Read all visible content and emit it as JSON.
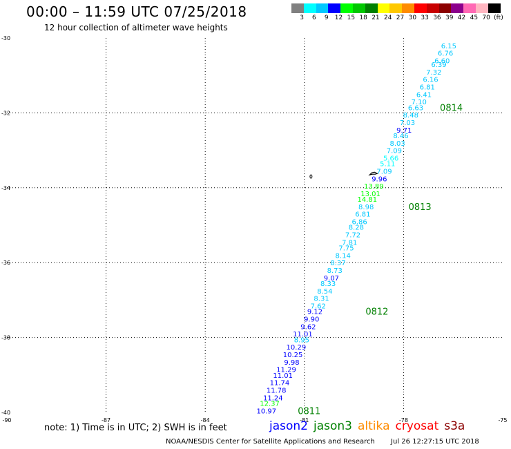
{
  "header": {
    "title": "00:00 – 11:59 UTC 07/25/2018",
    "subtitle": "12 hour collection of altimeter wave heights"
  },
  "colorbar": {
    "colors": [
      "#808080",
      "#00ffff",
      "#00c8ff",
      "#0000ff",
      "#00ff00",
      "#00c800",
      "#008000",
      "#ffff00",
      "#ffc800",
      "#ff8c00",
      "#ff0000",
      "#c80000",
      "#8b0000",
      "#8b008b",
      "#ff69b4",
      "#ffb6c1",
      "#000000"
    ],
    "labels": [
      "3",
      "6",
      "9",
      "12",
      "15",
      "18",
      "21",
      "24",
      "27",
      "30",
      "33",
      "36",
      "39",
      "42",
      "45",
      "70",
      "(ft)"
    ]
  },
  "map": {
    "lon_range": [
      -90,
      -75
    ],
    "lat_range": [
      -40,
      -30
    ],
    "lon_ticks": [
      "-90",
      "-87",
      "-84",
      "-81",
      "-78",
      "-75"
    ],
    "lat_ticks": [
      "-30",
      "-32",
      "-34",
      "-36",
      "-38",
      "-40"
    ],
    "grid": "dotted"
  },
  "swh_points": [
    {
      "lon": -76.4,
      "lat": -30.2,
      "value": "6.15",
      "color": "#00c8ff"
    },
    {
      "lon": -76.5,
      "lat": -30.4,
      "value": "6.76",
      "color": "#00c8ff"
    },
    {
      "lon": -76.6,
      "lat": -30.6,
      "value": "6.60",
      "color": "#00c8ff"
    },
    {
      "lon": -76.7,
      "lat": -30.7,
      "value": "6.39",
      "color": "#00c8ff"
    },
    {
      "lon": -76.85,
      "lat": -30.9,
      "value": "7.32",
      "color": "#00c8ff"
    },
    {
      "lon": -76.95,
      "lat": -31.1,
      "value": "6.16",
      "color": "#00c8ff"
    },
    {
      "lon": -77.05,
      "lat": -31.3,
      "value": "6.81",
      "color": "#00c8ff"
    },
    {
      "lon": -77.15,
      "lat": -31.5,
      "value": "6.41",
      "color": "#00c8ff"
    },
    {
      "lon": -77.3,
      "lat": -31.7,
      "value": "7.10",
      "color": "#00c8ff"
    },
    {
      "lon": -77.4,
      "lat": -31.85,
      "value": "6.63",
      "color": "#00c8ff"
    },
    {
      "lon": -77.55,
      "lat": -32.05,
      "value": "8.48",
      "color": "#00c8ff"
    },
    {
      "lon": -77.65,
      "lat": -32.25,
      "value": "7.03",
      "color": "#00c8ff"
    },
    {
      "lon": -77.75,
      "lat": -32.45,
      "value": "9.71",
      "color": "#0000ff"
    },
    {
      "lon": -77.85,
      "lat": -32.6,
      "value": "8.46",
      "color": "#00c8ff"
    },
    {
      "lon": -77.95,
      "lat": -32.8,
      "value": "8.03",
      "color": "#00c8ff"
    },
    {
      "lon": -78.05,
      "lat": -33.0,
      "value": "7.09",
      "color": "#00c8ff"
    },
    {
      "lon": -78.15,
      "lat": -33.2,
      "value": "5.66",
      "color": "#00ffff"
    },
    {
      "lon": -78.25,
      "lat": -33.35,
      "value": "5.11",
      "color": "#00ffff"
    },
    {
      "lon": -78.35,
      "lat": -33.55,
      "value": "7.09",
      "color": "#00c8ff"
    },
    {
      "lon": -78.5,
      "lat": -33.75,
      "value": "9.96",
      "color": "#0000ff"
    },
    {
      "lon": -78.6,
      "lat": -33.95,
      "value": "13.89",
      "color": "#00ff00"
    },
    {
      "lon": -78.7,
      "lat": -34.15,
      "value": "13.01",
      "color": "#00ff00"
    },
    {
      "lon": -78.8,
      "lat": -34.3,
      "value": "14.81",
      "color": "#00ff00"
    },
    {
      "lon": -78.9,
      "lat": -34.5,
      "value": "8.98",
      "color": "#00c8ff"
    },
    {
      "lon": -79.0,
      "lat": -34.7,
      "value": "6.81",
      "color": "#00c8ff"
    },
    {
      "lon": -79.1,
      "lat": -34.9,
      "value": "6.86",
      "color": "#00c8ff"
    },
    {
      "lon": -79.2,
      "lat": -35.05,
      "value": "8.28",
      "color": "#00c8ff"
    },
    {
      "lon": -79.3,
      "lat": -35.25,
      "value": "7.72",
      "color": "#00c8ff"
    },
    {
      "lon": -79.4,
      "lat": -35.45,
      "value": "7.81",
      "color": "#00c8ff"
    },
    {
      "lon": -79.5,
      "lat": -35.6,
      "value": "7.75",
      "color": "#00c8ff"
    },
    {
      "lon": -79.6,
      "lat": -35.8,
      "value": "8.14",
      "color": "#00c8ff"
    },
    {
      "lon": -79.75,
      "lat": -36.0,
      "value": "8.37",
      "color": "#00c8ff"
    },
    {
      "lon": -79.85,
      "lat": -36.2,
      "value": "8.73",
      "color": "#00c8ff"
    },
    {
      "lon": -79.95,
      "lat": -36.4,
      "value": "9.07",
      "color": "#0000ff"
    },
    {
      "lon": -80.05,
      "lat": -36.55,
      "value": "8.33",
      "color": "#00c8ff"
    },
    {
      "lon": -80.15,
      "lat": -36.75,
      "value": "8.54",
      "color": "#00c8ff"
    },
    {
      "lon": -80.25,
      "lat": -36.95,
      "value": "8.31",
      "color": "#00c8ff"
    },
    {
      "lon": -80.35,
      "lat": -37.15,
      "value": "7.62",
      "color": "#00c8ff"
    },
    {
      "lon": -80.45,
      "lat": -37.3,
      "value": "9.12",
      "color": "#0000ff"
    },
    {
      "lon": -80.55,
      "lat": -37.5,
      "value": "9.90",
      "color": "#0000ff"
    },
    {
      "lon": -80.65,
      "lat": -37.7,
      "value": "9.62",
      "color": "#0000ff"
    },
    {
      "lon": -80.75,
      "lat": -37.9,
      "value": "11.01",
      "color": "#0000ff"
    },
    {
      "lon": -80.85,
      "lat": -38.05,
      "value": "8.95",
      "color": "#00c8ff"
    },
    {
      "lon": -80.95,
      "lat": -38.25,
      "value": "10.29",
      "color": "#0000ff"
    },
    {
      "lon": -81.05,
      "lat": -38.45,
      "value": "10.25",
      "color": "#0000ff"
    },
    {
      "lon": -81.15,
      "lat": -38.65,
      "value": "9.98",
      "color": "#0000ff"
    },
    {
      "lon": -81.25,
      "lat": -38.85,
      "value": "11.29",
      "color": "#0000ff"
    },
    {
      "lon": -81.35,
      "lat": -39.0,
      "value": "11.01",
      "color": "#0000ff"
    },
    {
      "lon": -81.45,
      "lat": -39.2,
      "value": "11.74",
      "color": "#0000ff"
    },
    {
      "lon": -81.55,
      "lat": -39.4,
      "value": "11.78",
      "color": "#0000ff"
    },
    {
      "lon": -81.65,
      "lat": -39.6,
      "value": "11.24",
      "color": "#0000ff"
    },
    {
      "lon": -81.75,
      "lat": -39.75,
      "value": "12.37",
      "color": "#00ff00"
    },
    {
      "lon": -81.85,
      "lat": -39.95,
      "value": "10.97",
      "color": "#0000ff"
    }
  ],
  "time_labels": [
    {
      "lon": -76.9,
      "lat": -31.85,
      "text": "0814"
    },
    {
      "lon": -77.85,
      "lat": -34.5,
      "text": "0813"
    },
    {
      "lon": -79.15,
      "lat": -37.3,
      "text": "0812"
    },
    {
      "lon": -81.2,
      "lat": -39.95,
      "text": "0811"
    }
  ],
  "time_label_color": "#008000",
  "islands": [
    {
      "lon": -80.8,
      "lat": -33.7,
      "name": "island-small"
    },
    {
      "lon": -78.9,
      "lat": -33.62,
      "name": "island-large"
    }
  ],
  "note": "note:  1) Time is in UTC;  2) SWH is in feet",
  "satellite_legend": [
    {
      "name": "jason2",
      "color": "#0000ff"
    },
    {
      "name": "jason3",
      "color": "#008000"
    },
    {
      "name": "altika",
      "color": "#ff8c00"
    },
    {
      "name": "cryosat",
      "color": "#ff0000"
    },
    {
      "name": "s3a",
      "color": "#8b0000"
    }
  ],
  "footer": {
    "credit": "NOAA/NESDIS Center for Satellite Applications and Research",
    "timestamp": "Jul 26 12:27:15 UTC 2018"
  }
}
